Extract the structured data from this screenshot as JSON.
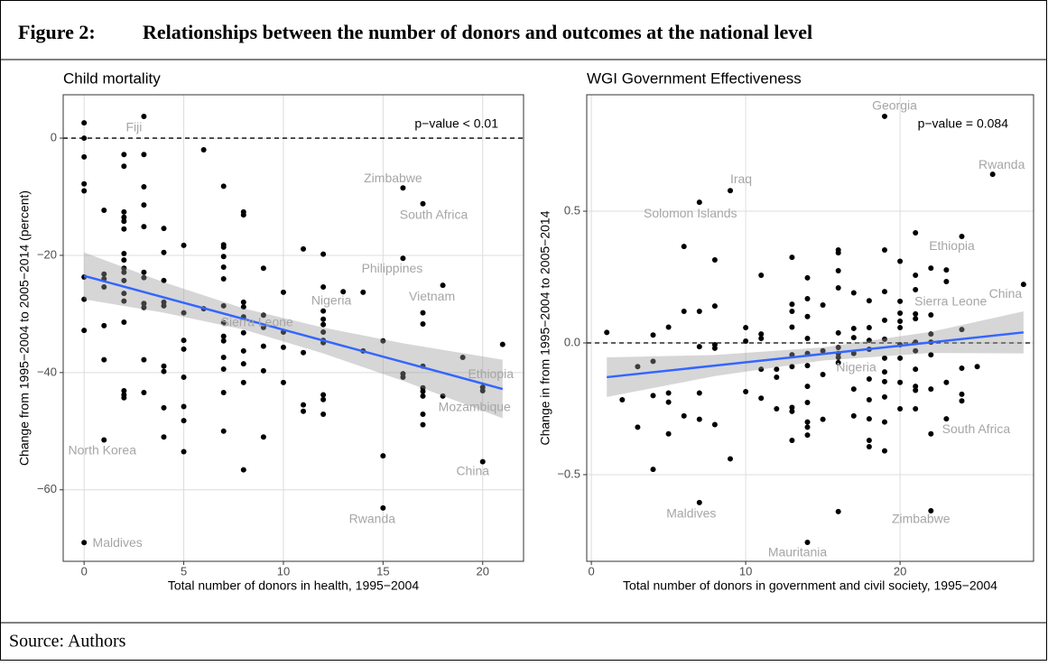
{
  "figure": {
    "number": "Figure 2:",
    "title": "Relationships between the number of donors and outcomes at the national level",
    "source": "Source: Authors"
  },
  "chart_data": [
    {
      "type": "scatter",
      "title": "Child mortality",
      "x_label": "Total number of donors in health, 1995−2004",
      "y_label": "Change from 1995−2004 to 2005−2014 (percent)",
      "annotation": "p−value < 0.01",
      "xlim": [
        -1.05,
        22.05
      ],
      "ylim": [
        -72.2,
        7.4
      ],
      "xticks": [
        0,
        5,
        10,
        15,
        20
      ],
      "yticks": [
        {
          "value": -60,
          "label": "−60"
        },
        {
          "value": -40,
          "label": "−40"
        },
        {
          "value": -20,
          "label": "−20"
        },
        0
      ],
      "grid": true,
      "hline": 0,
      "color": "#000000",
      "x": [
        0,
        0,
        0,
        0,
        0,
        0,
        0,
        0,
        0,
        1,
        1,
        1,
        1,
        1,
        1,
        1,
        2,
        2,
        2,
        2,
        2,
        2,
        2,
        2,
        2,
        2,
        2,
        2,
        2,
        2,
        2,
        2,
        2,
        3,
        3,
        3,
        3,
        3,
        3,
        3,
        3,
        3,
        3,
        3,
        4,
        4,
        4,
        4,
        4,
        4,
        4,
        4,
        4,
        5,
        5,
        5,
        5,
        5,
        5,
        5,
        5,
        6,
        6,
        7,
        7,
        7,
        7,
        7,
        7,
        7,
        7,
        7,
        7,
        7,
        7,
        7,
        7,
        8,
        8,
        8,
        8,
        8,
        8,
        8,
        8,
        8,
        8,
        9,
        9,
        9,
        9,
        9,
        9,
        10,
        10,
        10,
        10,
        11,
        11,
        11,
        11,
        12,
        12,
        12,
        12,
        12,
        12,
        12,
        12,
        12,
        12,
        12,
        13,
        14,
        14,
        15,
        15,
        15,
        16,
        16,
        16,
        16,
        17,
        17,
        17,
        17,
        17,
        17,
        17,
        17,
        17,
        18,
        18,
        19,
        20,
        20,
        20,
        21
      ],
      "values": [
        2.6,
        0,
        -3.2,
        -7.8,
        -9,
        -23.7,
        -27.5,
        -32.8,
        -69,
        -12.3,
        -23.2,
        -24,
        -25.4,
        -32,
        -37.8,
        -51.5,
        -2.8,
        -4.8,
        -12.6,
        -13.5,
        -14.2,
        -15.5,
        -19.7,
        -20.8,
        -22.2,
        -22.9,
        -24.3,
        -26.5,
        -27.8,
        -31.4,
        -43.1,
        -43.8,
        -44.3,
        3.7,
        -2.8,
        -8.3,
        -11.4,
        -15.1,
        -22.9,
        -23.8,
        -28.2,
        -28.9,
        -37.8,
        -43.4,
        -15.4,
        -19.5,
        -24.3,
        -28,
        -28.6,
        -38.9,
        -39.8,
        -46,
        -51,
        -18.3,
        -29.8,
        -34.5,
        -36,
        -40.8,
        -45.8,
        -48.2,
        -53.5,
        -2,
        -29.1,
        -8.2,
        -18.2,
        -18.6,
        -20.2,
        -22,
        -24,
        -28.6,
        -31.5,
        -33.8,
        -34.6,
        -37.4,
        -39.4,
        -43.4,
        -50,
        -12.6,
        -13.1,
        -28,
        -28.8,
        -30.5,
        -33.2,
        -36.3,
        -38.5,
        -41.7,
        -56.6,
        -22.2,
        -30.2,
        -32.3,
        -35.5,
        -39.7,
        -51,
        -26.3,
        -33.1,
        -35.7,
        -41.7,
        -18.9,
        -36.6,
        -45.5,
        -46.6,
        -19.8,
        -25.4,
        -29.5,
        -30.9,
        -31.8,
        -33.1,
        -34.5,
        -34.9,
        -43.8,
        -44.6,
        -47.1,
        -26.2,
        -26.3,
        -36.3,
        -34.6,
        -54.2,
        -63.1,
        -8.5,
        -20.5,
        -40.2,
        -40.8,
        -11.2,
        -29.8,
        -31.7,
        -38.9,
        -42.6,
        -43.2,
        -44,
        -47.1,
        -48.9,
        -25.1,
        -44,
        -37.4,
        -42.5,
        -43.1,
        -55.2,
        -35.2
      ],
      "labels": [
        {
          "text": "Fiji",
          "x": 3,
          "y": 3.7
        },
        {
          "text": "Zimbabwe",
          "x": 16,
          "y": -8.5
        },
        {
          "text": "South Africa",
          "x": 17,
          "y": -11.2
        },
        {
          "text": "Philippines",
          "x": 16,
          "y": -20.5
        },
        {
          "text": "Vietnam",
          "x": 18,
          "y": -25.1
        },
        {
          "text": "Nigeria",
          "x": 12,
          "y": -29.5
        },
        {
          "text": "Sierra Leone",
          "x": 7,
          "y": -31.5
        },
        {
          "text": "Ethiopia",
          "x": 20,
          "y": -42.5
        },
        {
          "text": "Mozambique",
          "x": 20,
          "y": -43.1
        },
        {
          "text": "North Korea",
          "x": 1,
          "y": -51.5
        },
        {
          "text": "China",
          "x": 20,
          "y": -55.2
        },
        {
          "text": "Rwanda",
          "x": 15,
          "y": -63.1
        },
        {
          "text": "Maldives",
          "x": 0,
          "y": -69
        }
      ],
      "fit": {
        "color": "#3366ff",
        "band_color": "#999999",
        "x": [
          0,
          4,
          8,
          12,
          16,
          21
        ],
        "y": [
          -23.5,
          -27.18,
          -30.85,
          -34.53,
          -38.2,
          -42.8
        ],
        "lower": [
          -27.5,
          -29.78,
          -32.65,
          -36.73,
          -41.4,
          -47.8
        ],
        "upper": [
          -19.5,
          -24.58,
          -29.05,
          -32.33,
          -35,
          -37.8
        ]
      }
    },
    {
      "type": "scatter",
      "title": "WGI Government Effectiveness",
      "x_label": "Total number of donors in government and civil society, 1995−2004",
      "y_label": "Change in from 1995−2004 to 2005−2014",
      "annotation": "p−value = 0.084",
      "xlim": [
        -0.3,
        28.65
      ],
      "ylim": [
        -0.829,
        0.942
      ],
      "xticks": [
        0,
        10,
        20
      ],
      "yticks": [
        {
          "value": -0.5,
          "label": "−0.5"
        },
        {
          "value": 0,
          "label": "0.0"
        },
        0.5
      ],
      "grid": true,
      "hline": 0,
      "color": "#000000",
      "x": [
        1,
        2,
        3,
        3,
        4,
        4,
        4,
        4,
        5,
        5,
        5,
        5,
        6,
        6,
        6,
        7,
        7,
        7,
        7,
        7,
        7,
        8,
        8,
        8,
        8,
        8,
        9,
        9,
        10,
        10,
        10,
        11,
        11,
        11,
        11,
        11,
        12,
        12,
        12,
        13,
        13,
        13,
        13,
        13,
        13,
        13,
        13,
        13,
        14,
        14,
        14,
        14,
        14,
        14,
        14,
        14,
        14,
        14,
        14,
        14,
        15,
        15,
        15,
        15,
        16,
        16,
        16,
        16,
        16,
        16,
        16,
        16,
        16,
        16,
        17,
        17,
        17,
        17,
        17,
        17,
        18,
        18,
        18,
        18,
        18,
        18,
        18,
        18,
        18,
        19,
        19,
        19,
        19,
        19,
        19,
        19,
        19,
        19,
        19,
        19,
        20,
        20,
        20,
        20,
        20,
        20,
        20,
        20,
        20,
        21,
        21,
        21,
        21,
        21,
        21,
        21,
        21,
        21,
        21,
        21,
        22,
        22,
        22,
        22,
        22,
        22,
        22,
        22,
        23,
        23,
        23,
        23,
        24,
        24,
        24,
        24,
        24,
        25,
        26,
        28
      ],
      "values": [
        0.04,
        -0.216,
        -0.09,
        -0.32,
        0.03,
        -0.07,
        -0.2,
        -0.48,
        0.06,
        -0.19,
        -0.225,
        -0.345,
        0.366,
        0.12,
        -0.277,
        0.534,
        0.12,
        -0.014,
        -0.19,
        -0.29,
        -0.606,
        0.315,
        0.14,
        -0.007,
        -0.02,
        -0.31,
        0.578,
        -0.44,
        0.058,
        0.007,
        -0.185,
        0.257,
        0.034,
        0.017,
        -0.1,
        -0.21,
        -0.1,
        -0.13,
        -0.25,
        0.325,
        0.147,
        0.12,
        0.06,
        -0.045,
        -0.09,
        -0.245,
        -0.26,
        -0.37,
        0.247,
        0.168,
        0.1,
        0.017,
        -0.04,
        -0.086,
        -0.165,
        -0.226,
        -0.3,
        -0.32,
        -0.35,
        -0.757,
        0.144,
        -0.03,
        -0.12,
        -0.29,
        0.353,
        0.342,
        0.274,
        0.209,
        0.038,
        -0.017,
        -0.04,
        -0.055,
        -0.075,
        -0.64,
        0.19,
        0.055,
        0.02,
        -0.04,
        -0.175,
        -0.277,
        0.16,
        0.058,
        0.01,
        -0.024,
        -0.137,
        -0.216,
        -0.288,
        -0.37,
        -0.394,
        0.86,
        0.353,
        0.195,
        0.086,
        0.014,
        -0.058,
        -0.11,
        -0.147,
        -0.205,
        -0.3,
        -0.41,
        0.31,
        0.158,
        0.113,
        0.082,
        0.058,
        -0.007,
        -0.058,
        -0.15,
        -0.25,
        0.418,
        0.257,
        0.202,
        0.11,
        0.092,
        0.003,
        -0.03,
        -0.1,
        -0.165,
        -0.18,
        -0.25,
        0.284,
        0.106,
        0.034,
        0.003,
        -0.045,
        -0.175,
        -0.345,
        -0.637,
        0.277,
        0.233,
        -0.15,
        -0.288,
        0.404,
        0.051,
        -0.096,
        -0.195,
        -0.22,
        -0.09,
        0.64,
        0.222
      ],
      "labels": [
        {
          "text": "Georgia",
          "x": 19,
          "y": 0.86
        },
        {
          "text": "Iraq",
          "x": 9,
          "y": 0.578
        },
        {
          "text": "Solomon Islands",
          "x": 7,
          "y": 0.534
        },
        {
          "text": "Rwanda",
          "x": 26,
          "y": 0.64
        },
        {
          "text": "Ethiopia",
          "x": 24,
          "y": 0.404
        },
        {
          "text": "China",
          "x": 28,
          "y": 0.222
        },
        {
          "text": "Sierra Leone",
          "x": 21,
          "y": 0.11
        },
        {
          "text": "Nigeria",
          "x": 15,
          "y": -0.03
        },
        {
          "text": "South Africa",
          "x": 23,
          "y": -0.288
        },
        {
          "text": "Maldives",
          "x": 7,
          "y": -0.606
        },
        {
          "text": "Zimbabwe",
          "x": 22,
          "y": -0.637
        },
        {
          "text": "Mauritania",
          "x": 14,
          "y": -0.757
        }
      ],
      "fit": {
        "color": "#3366ff",
        "band_color": "#999999",
        "x": [
          1,
          8,
          15,
          22,
          28
        ],
        "y": [
          -0.13,
          -0.086,
          -0.042,
          0.002,
          0.04
        ],
        "lower": [
          -0.205,
          -0.126,
          -0.067,
          -0.038,
          -0.04
        ],
        "upper": [
          -0.055,
          -0.046,
          -0.017,
          0.042,
          0.12
        ]
      }
    }
  ]
}
